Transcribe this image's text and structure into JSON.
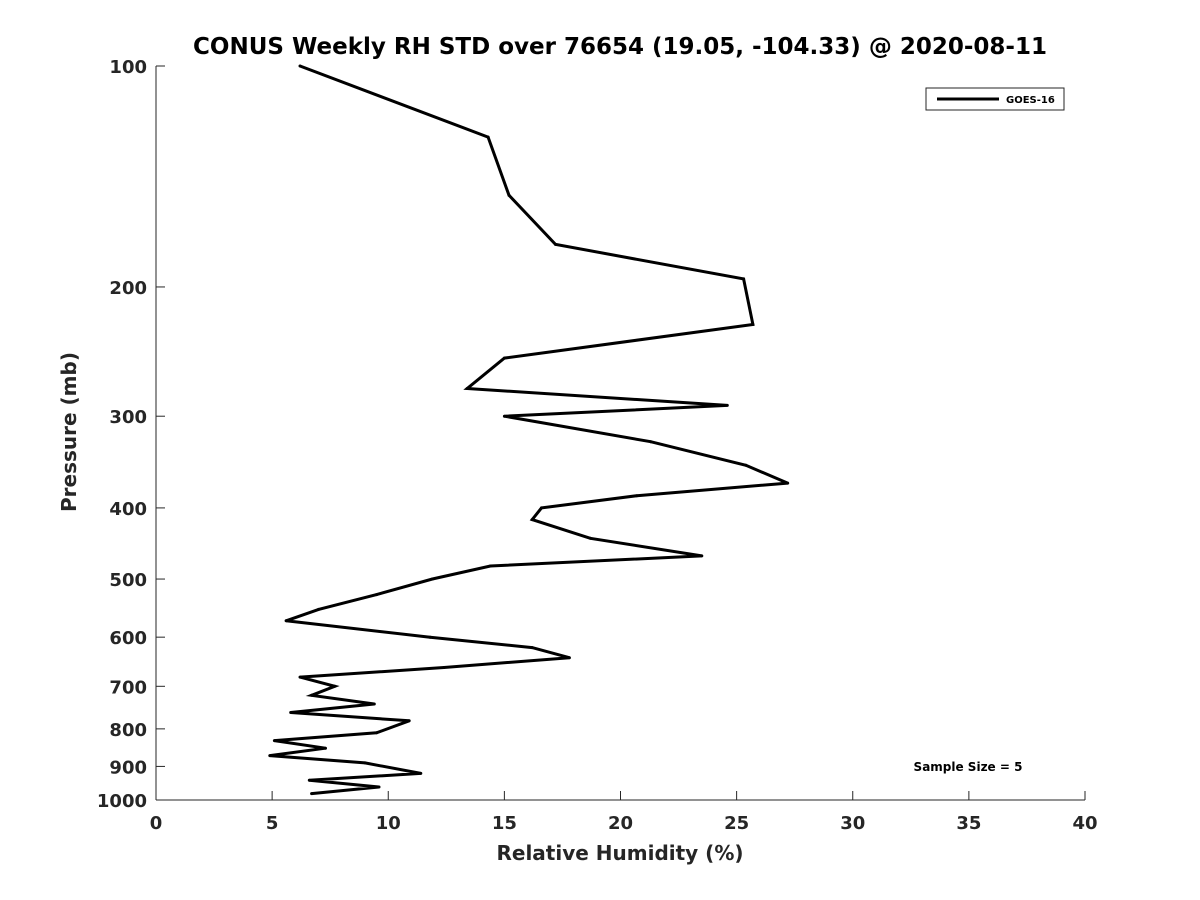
{
  "chart_data": {
    "type": "line",
    "title": "CONUS Weekly RH STD over 76654 (19.05, -104.33) @ 2020-08-11",
    "xlabel": "Relative Humidity (%)",
    "ylabel": "Pressure (mb)",
    "xlim": [
      0,
      40
    ],
    "ylim": [
      100,
      1000
    ],
    "y_scale": "log",
    "y_reversed": true,
    "x_ticks": [
      "0",
      "5",
      "10",
      "15",
      "20",
      "25",
      "30",
      "35",
      "40"
    ],
    "y_ticks": [
      "100",
      "200",
      "300",
      "400",
      "500",
      "600",
      "700",
      "800",
      "900",
      "1000"
    ],
    "grid": false,
    "legend_position": "top-right",
    "annotation": "Sample Size = 5",
    "series": [
      {
        "name": "GOES-16",
        "color": "#000000",
        "points": [
          [
            6.2,
            100
          ],
          [
            14.3,
            125
          ],
          [
            15.2,
            150
          ],
          [
            17.2,
            175
          ],
          [
            25.3,
            195
          ],
          [
            25.7,
            225
          ],
          [
            15.0,
            250
          ],
          [
            13.4,
            275
          ],
          [
            24.6,
            290
          ],
          [
            15.0,
            300
          ],
          [
            21.3,
            325
          ],
          [
            25.4,
            350
          ],
          [
            27.2,
            370
          ],
          [
            20.7,
            385
          ],
          [
            16.6,
            400
          ],
          [
            16.2,
            415
          ],
          [
            18.7,
            440
          ],
          [
            23.5,
            465
          ],
          [
            14.4,
            480
          ],
          [
            11.9,
            500
          ],
          [
            9.5,
            525
          ],
          [
            7.0,
            550
          ],
          [
            5.6,
            570
          ],
          [
            11.8,
            600
          ],
          [
            16.2,
            620
          ],
          [
            17.8,
            640
          ],
          [
            12.4,
            660
          ],
          [
            6.2,
            680
          ],
          [
            7.7,
            700
          ],
          [
            6.7,
            720
          ],
          [
            9.4,
            740
          ],
          [
            5.8,
            760
          ],
          [
            10.9,
            780
          ],
          [
            9.5,
            810
          ],
          [
            5.1,
            830
          ],
          [
            7.3,
            850
          ],
          [
            4.9,
            870
          ],
          [
            9.0,
            890
          ],
          [
            11.4,
            920
          ],
          [
            6.6,
            940
          ],
          [
            9.6,
            960
          ],
          [
            6.7,
            980
          ]
        ]
      }
    ]
  }
}
